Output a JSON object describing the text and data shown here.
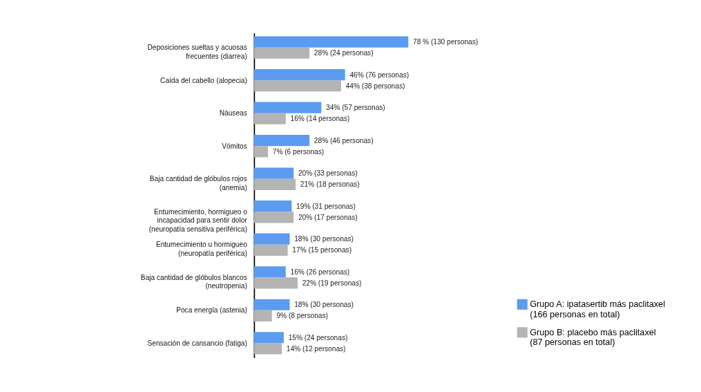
{
  "chart_data": {
    "type": "bar",
    "orientation": "horizontal",
    "legend": "bottom right",
    "categories": [
      "Deposiciones sueltas y acuosas frecuentes (diarrea)",
      "Caída del cabello (alopecia)",
      "Náuseas",
      "Vómitos",
      "Baja cantidad de glóbulos rojos (anemia)",
      "Entumecimiento, hormigueo o incapacidad para sentir dolor (neuropatía sensitiva periférica)",
      "Entumecimiento u hormigueo (neuropatía periférica)",
      "Baja cantidad de glóbulos blancos (neutropenia)",
      "Poca energía (astenia)",
      "Sensación de cansancio (fatiga)"
    ],
    "series": [
      {
        "name": "Grupo A: ipatasertib más paclitaxel (166 personas en total)",
        "color": "#5b9cf0",
        "values": [
          78,
          46,
          34,
          28,
          20,
          19,
          18,
          16,
          18,
          15
        ],
        "value_labels": [
          "78 % (130 personas)",
          "46% (76 personas)",
          "34% (57 personas)",
          "28% (46 personas)",
          "20% (33 personas)",
          "19% (31 personas)",
          "18% (30 personas)",
          "16% (26 personas)",
          "18% (30 personas)",
          "15% (24 personas)"
        ]
      },
      {
        "name": "Grupo B: placebo más paclitaxel (87 personas en total)",
        "color": "#b4b4b4",
        "values": [
          28,
          44,
          16,
          7,
          21,
          20,
          17,
          22,
          9,
          14
        ],
        "value_labels": [
          "28% (24 personas)",
          "44% (38 personas)",
          "16% (14 personas)",
          "7% (6 personas)",
          "21% (18 personas)",
          "20% (17 personas)",
          "17% (15 personas)",
          "22% (19 personas)",
          "9% (8 personas)",
          "14% (12 personas)"
        ]
      }
    ]
  }
}
